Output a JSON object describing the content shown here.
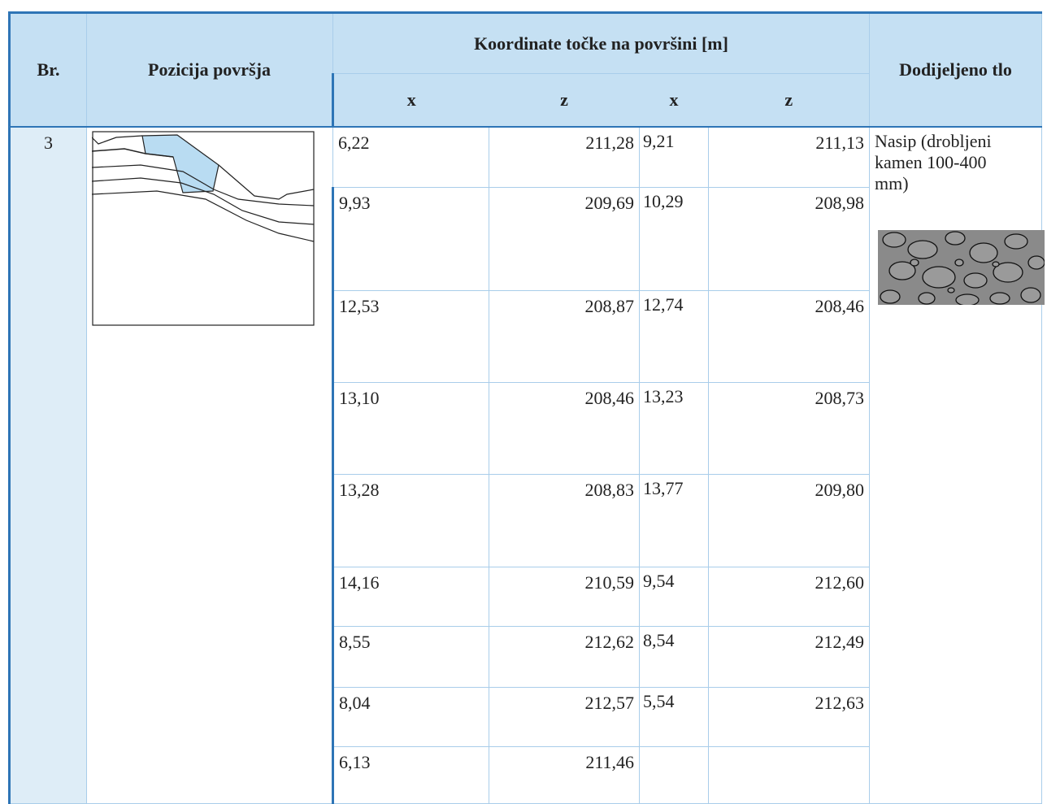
{
  "header": {
    "number": "Br.",
    "position": "Pozicija površja",
    "coordinates": "Koordinate točke na površini [m]",
    "sub": [
      "x",
      "z",
      "x",
      "z"
    ],
    "soil": "Dodijeljeno tlo"
  },
  "table": {
    "number": "3",
    "rows": [
      [
        "6,22",
        "211,28",
        "9,21",
        "211,13"
      ],
      [
        "9,93",
        "209,69",
        "10,29",
        "208,98"
      ],
      [
        "12,53",
        "208,87",
        "12,74",
        "208,46"
      ],
      [
        "13,10",
        "208,46",
        "13,23",
        "208,73"
      ],
      [
        "13,28",
        "208,83",
        "13,77",
        "209,80"
      ],
      [
        "14,16",
        "210,59",
        "9,54",
        "212,60"
      ],
      [
        "8,55",
        "212,62",
        "8,54",
        "212,49"
      ],
      [
        "8,04",
        "212,57",
        "5,54",
        "212,63"
      ],
      [
        "6,13",
        "211,46"
      ]
    ],
    "soil": "Nasip (drobljeni kamen 100-400 mm)"
  }
}
